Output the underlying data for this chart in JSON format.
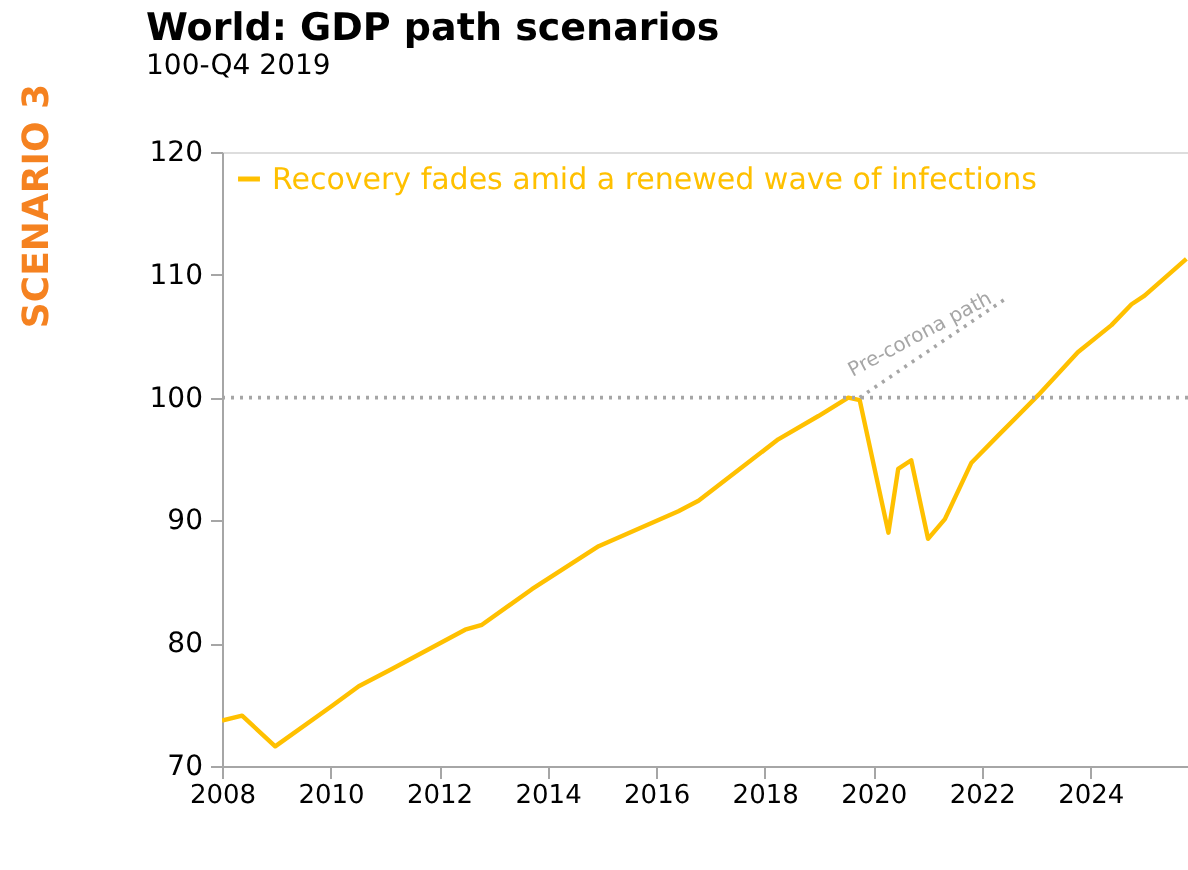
{
  "chart_data": {
    "type": "line",
    "title": "World: GDP path scenarios",
    "subtitle": "100-Q4 2019",
    "annotations": [
      "SCENARIO 3",
      {
        "text": "Pre-corona path",
        "x": 2021.0,
        "y": 104.0
      }
    ],
    "x": [
      2008.0,
      2008.37,
      2008.98,
      2010.03,
      2010.52,
      2011.13,
      2012.48,
      2012.79,
      2013.71,
      2014.94,
      2016.41,
      2016.78,
      2018.25,
      2018.99,
      2019.54,
      2019.75,
      2020.28,
      2020.46,
      2020.7,
      2021.01,
      2021.32,
      2021.81,
      2022.3,
      2023.04,
      2023.77,
      2024.39,
      2024.76,
      2025.0,
      2025.77
    ],
    "series": [
      {
        "name": "Recovery fades amid a renewed wave of infections",
        "color": "#ffc000",
        "values": [
          73.7,
          74.1,
          71.6,
          74.9,
          76.5,
          77.9,
          81.1,
          81.5,
          84.4,
          87.9,
          90.75,
          91.6,
          96.6,
          98.5,
          100.0,
          99.8,
          89.0,
          94.2,
          94.9,
          88.5,
          90.1,
          94.7,
          96.9,
          100.2,
          103.7,
          105.9,
          107.6,
          108.3,
          111.3
        ]
      },
      {
        "type": "line",
        "color": "#a6a6a6",
        "line_style": "dotted",
        "x": [
          2019.75,
          2022.42
        ],
        "values": [
          100.0,
          108.0
        ]
      }
    ],
    "ref_lines": [
      {
        "axis": "y",
        "value": 100,
        "color": "#a6a6a6",
        "line_style": "dotted"
      }
    ],
    "xlim": [
      2008,
      2025.8
    ],
    "xticks": [
      2008,
      2010,
      2012,
      2014,
      2016,
      2018,
      2020,
      2022,
      2024
    ],
    "ylim": [
      70,
      120
    ],
    "yticks": [
      70,
      80,
      90,
      100,
      110,
      120
    ],
    "grid": false,
    "legend": "top left",
    "marker": "none",
    "line_style": "solid"
  }
}
